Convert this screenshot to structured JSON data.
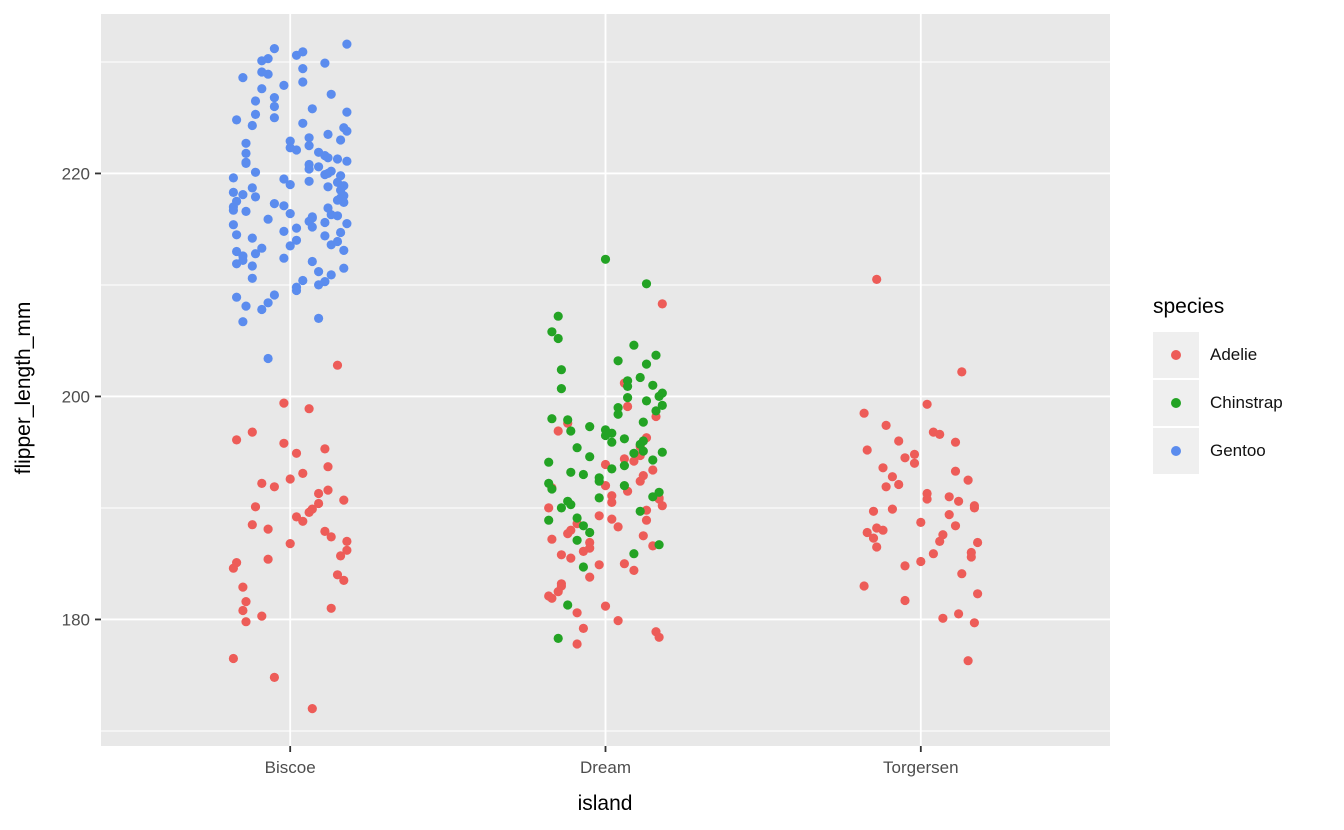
{
  "chart_data": {
    "type": "scatter",
    "subtype": "jitter",
    "title": "",
    "xlabel": "island",
    "ylabel": "flipper_length_mm",
    "x_categories": [
      "Biscoe",
      "Dream",
      "Torgersen"
    ],
    "y_ticks": [
      180,
      200,
      220
    ],
    "y_minor_ticks": [
      170,
      190,
      210,
      230
    ],
    "y_domain": [
      168.65,
      234.3
    ],
    "grid": "on",
    "legend": {
      "title": "species",
      "position": "right",
      "items": [
        {
          "label": "Adelie",
          "color": "#ed5c58"
        },
        {
          "label": "Chinstrap",
          "color": "#23a324"
        },
        {
          "label": "Gentoo",
          "color": "#5b8cee"
        }
      ]
    },
    "style": {
      "panel_bg": "#e8e8e8",
      "grid_major_color": "#ffffff",
      "grid_minor_color": "#ffffff",
      "tick_label_color": "#4d4d4d",
      "axis_title_color": "#000000",
      "tick_mark_color": "#333333",
      "legend_key_bg": "#efefef",
      "point_radius": 4.6
    },
    "jitter_dx_cycle": [
      0.02,
      -0.14,
      0.11,
      -0.05,
      0.17,
      -0.17,
      0.06,
      0.13,
      -0.09,
      0.0,
      0.15,
      -0.12,
      0.04,
      -0.18,
      0.09,
      0.18,
      -0.02,
      -0.15,
      0.12,
      -0.07,
      0.07,
      -0.11,
      0.16
    ],
    "groups": [
      {
        "island": "Biscoe",
        "species": "Adelie",
        "color": "#ed5c58",
        "flipper_mm": [
          189.2,
          181.6,
          195.3,
          174.8,
          190.7,
          185.1,
          198.9,
          187.4,
          180.3,
          192.6,
          184.0,
          196.8,
          188.8,
          176.5,
          191.3,
          186.2,
          199.4,
          182.9,
          193.7,
          188.1,
          172.0,
          190.1,
          185.7,
          194.9,
          179.8,
          187.9,
          191.9,
          183.5,
          196.1,
          189.6,
          181.0,
          192.2,
          186.8,
          202.8,
          188.5,
          193.1,
          184.6,
          190.4,
          187.0,
          195.8,
          180.8,
          191.6,
          185.4,
          189.9
        ]
      },
      {
        "island": "Dream",
        "species": "Adelie",
        "color": "#ed5c58",
        "flipper_mm": [
          190.5,
          183.2,
          194.7,
          186.9,
          178.4,
          191.8,
          185.0,
          196.3,
          188.6,
          181.2,
          193.4,
          187.7,
          179.9,
          190.0,
          184.4,
          208.3,
          189.3,
          182.5,
          192.9,
          186.1,
          199.1,
          188.0,
          178.9,
          191.1,
          185.8,
          195.5,
          183.8,
          190.9,
          187.2,
          201.2,
          189.8,
          180.6,
          193.9,
          186.6,
          197.6,
          188.3,
          182.1,
          194.2,
          190.2,
          184.9,
          196.9,
          187.5,
          179.2,
          191.5,
          185.5,
          198.2,
          189.0,
          183.0,
          192.4,
          186.4,
          190.8,
          181.9,
          194.4,
          188.9,
          177.8,
          192.0
        ]
      },
      {
        "island": "Torgersen",
        "species": "Adelie",
        "color": "#ed5c58",
        "flipper_mm": [
          191.3,
          186.5,
          195.9,
          181.7,
          190.2,
          187.8,
          196.6,
          184.1,
          192.8,
          188.7,
          176.3,
          193.6,
          185.9,
          198.5,
          189.4,
          182.3,
          194.8,
          187.3,
          190.6,
          196.0,
          180.1,
          191.9,
          186.0,
          199.3,
          188.2,
          193.3,
          184.8,
          190.0,
          195.2,
          187.0,
          202.2,
          189.9,
          185.2,
          192.5,
          188.0,
          196.8,
          183.0,
          191.0,
          186.9,
          194.0,
          189.7,
          180.5,
          192.1,
          187.6,
          197.4,
          185.6,
          190.8,
          210.5,
          188.4,
          194.5,
          179.7
        ]
      },
      {
        "island": "Biscoe",
        "species": "Gentoo",
        "color": "#5b8cee",
        "flipper_mm": [
          215.1,
          221.8,
          210.3,
          226.0,
          217.4,
          208.9,
          223.2,
          213.6,
          230.1,
          219.0,
          216.2,
          211.7,
          224.5,
          218.3,
          207.0,
          221.1,
          214.8,
          228.6,
          216.9,
          203.4,
          212.1,
          225.3,
          217.8,
          209.5,
          222.7,
          215.6,
          231.2,
          218.9,
          213.0,
          220.8,
          210.9,
          227.6,
          216.4,
          221.3,
          214.2,
          229.4,
          219.6,
          211.2,
          223.8,
          217.1,
          206.7,
          220.0,
          215.9,
          225.8,
          212.8,
          218.5,
          230.6,
          216.6,
          221.6,
          209.1,
          224.1,
          214.5,
          219.3,
          227.1,
          213.3,
          222.3,
          217.6,
          210.6,
          228.2,
          215.4,
          220.6,
          231.6,
          212.4,
          218.1,
          223.5,
          208.4,
          216.0,
          226.5,
          219.8,
          214.0,
          221.0,
          229.9,
          217.3,
          211.5,
          224.8,
          215.7,
          220.2,
          207.8,
          222.9,
          213.9,
          218.7,
          230.9,
          216.7,
          210.0,
          225.5,
          219.5,
          212.6,
          221.4,
          228.9,
          215.2,
          217.9,
          223.0,
          209.8,
          220.9,
          214.4,
          226.8,
          218.0,
          211.9,
          222.5,
          216.3,
          229.1,
          213.5,
          219.2,
          224.3,
          210.4,
          217.0,
          221.9,
          215.5,
          227.9,
          212.2,
          218.8,
          230.3,
          216.1,
          220.1,
          214.7,
          222.1,
          208.1,
          219.9,
          225.0,
          213.1,
          217.5,
          220.4
        ]
      },
      {
        "island": "Dream",
        "species": "Chinstrap",
        "color": "#23a324",
        "flipper_mm": [
          195.9,
          202.4,
          189.7,
          197.3,
          191.4,
          205.8,
          193.8,
          199.6,
          187.1,
          196.5,
          201.0,
          190.6,
          198.4,
          194.1,
          185.9,
          200.3,
          192.7,
          207.2,
          195.1,
          188.4,
          199.9,
          193.2,
          203.7,
          196.7,
          190.0,
          201.7,
          194.6,
          186.7,
          198.0,
          192.0,
          210.1,
          195.4,
          212.3,
          191.0,
          197.9,
          203.2,
          188.9,
          194.9,
          199.2,
          192.4,
          205.2,
          196.0,
          184.7,
          201.4,
          190.3,
          198.7,
          193.5,
          200.7,
          195.7,
          187.8,
          200.0,
          191.7,
          196.2,
          202.9,
          189.1,
          197.0,
          194.3,
          181.3,
          199.0,
          192.2,
          204.6,
          195.0,
          190.9,
          178.3,
          197.7,
          193.0,
          200.9,
          196.9
        ]
      }
    ]
  }
}
